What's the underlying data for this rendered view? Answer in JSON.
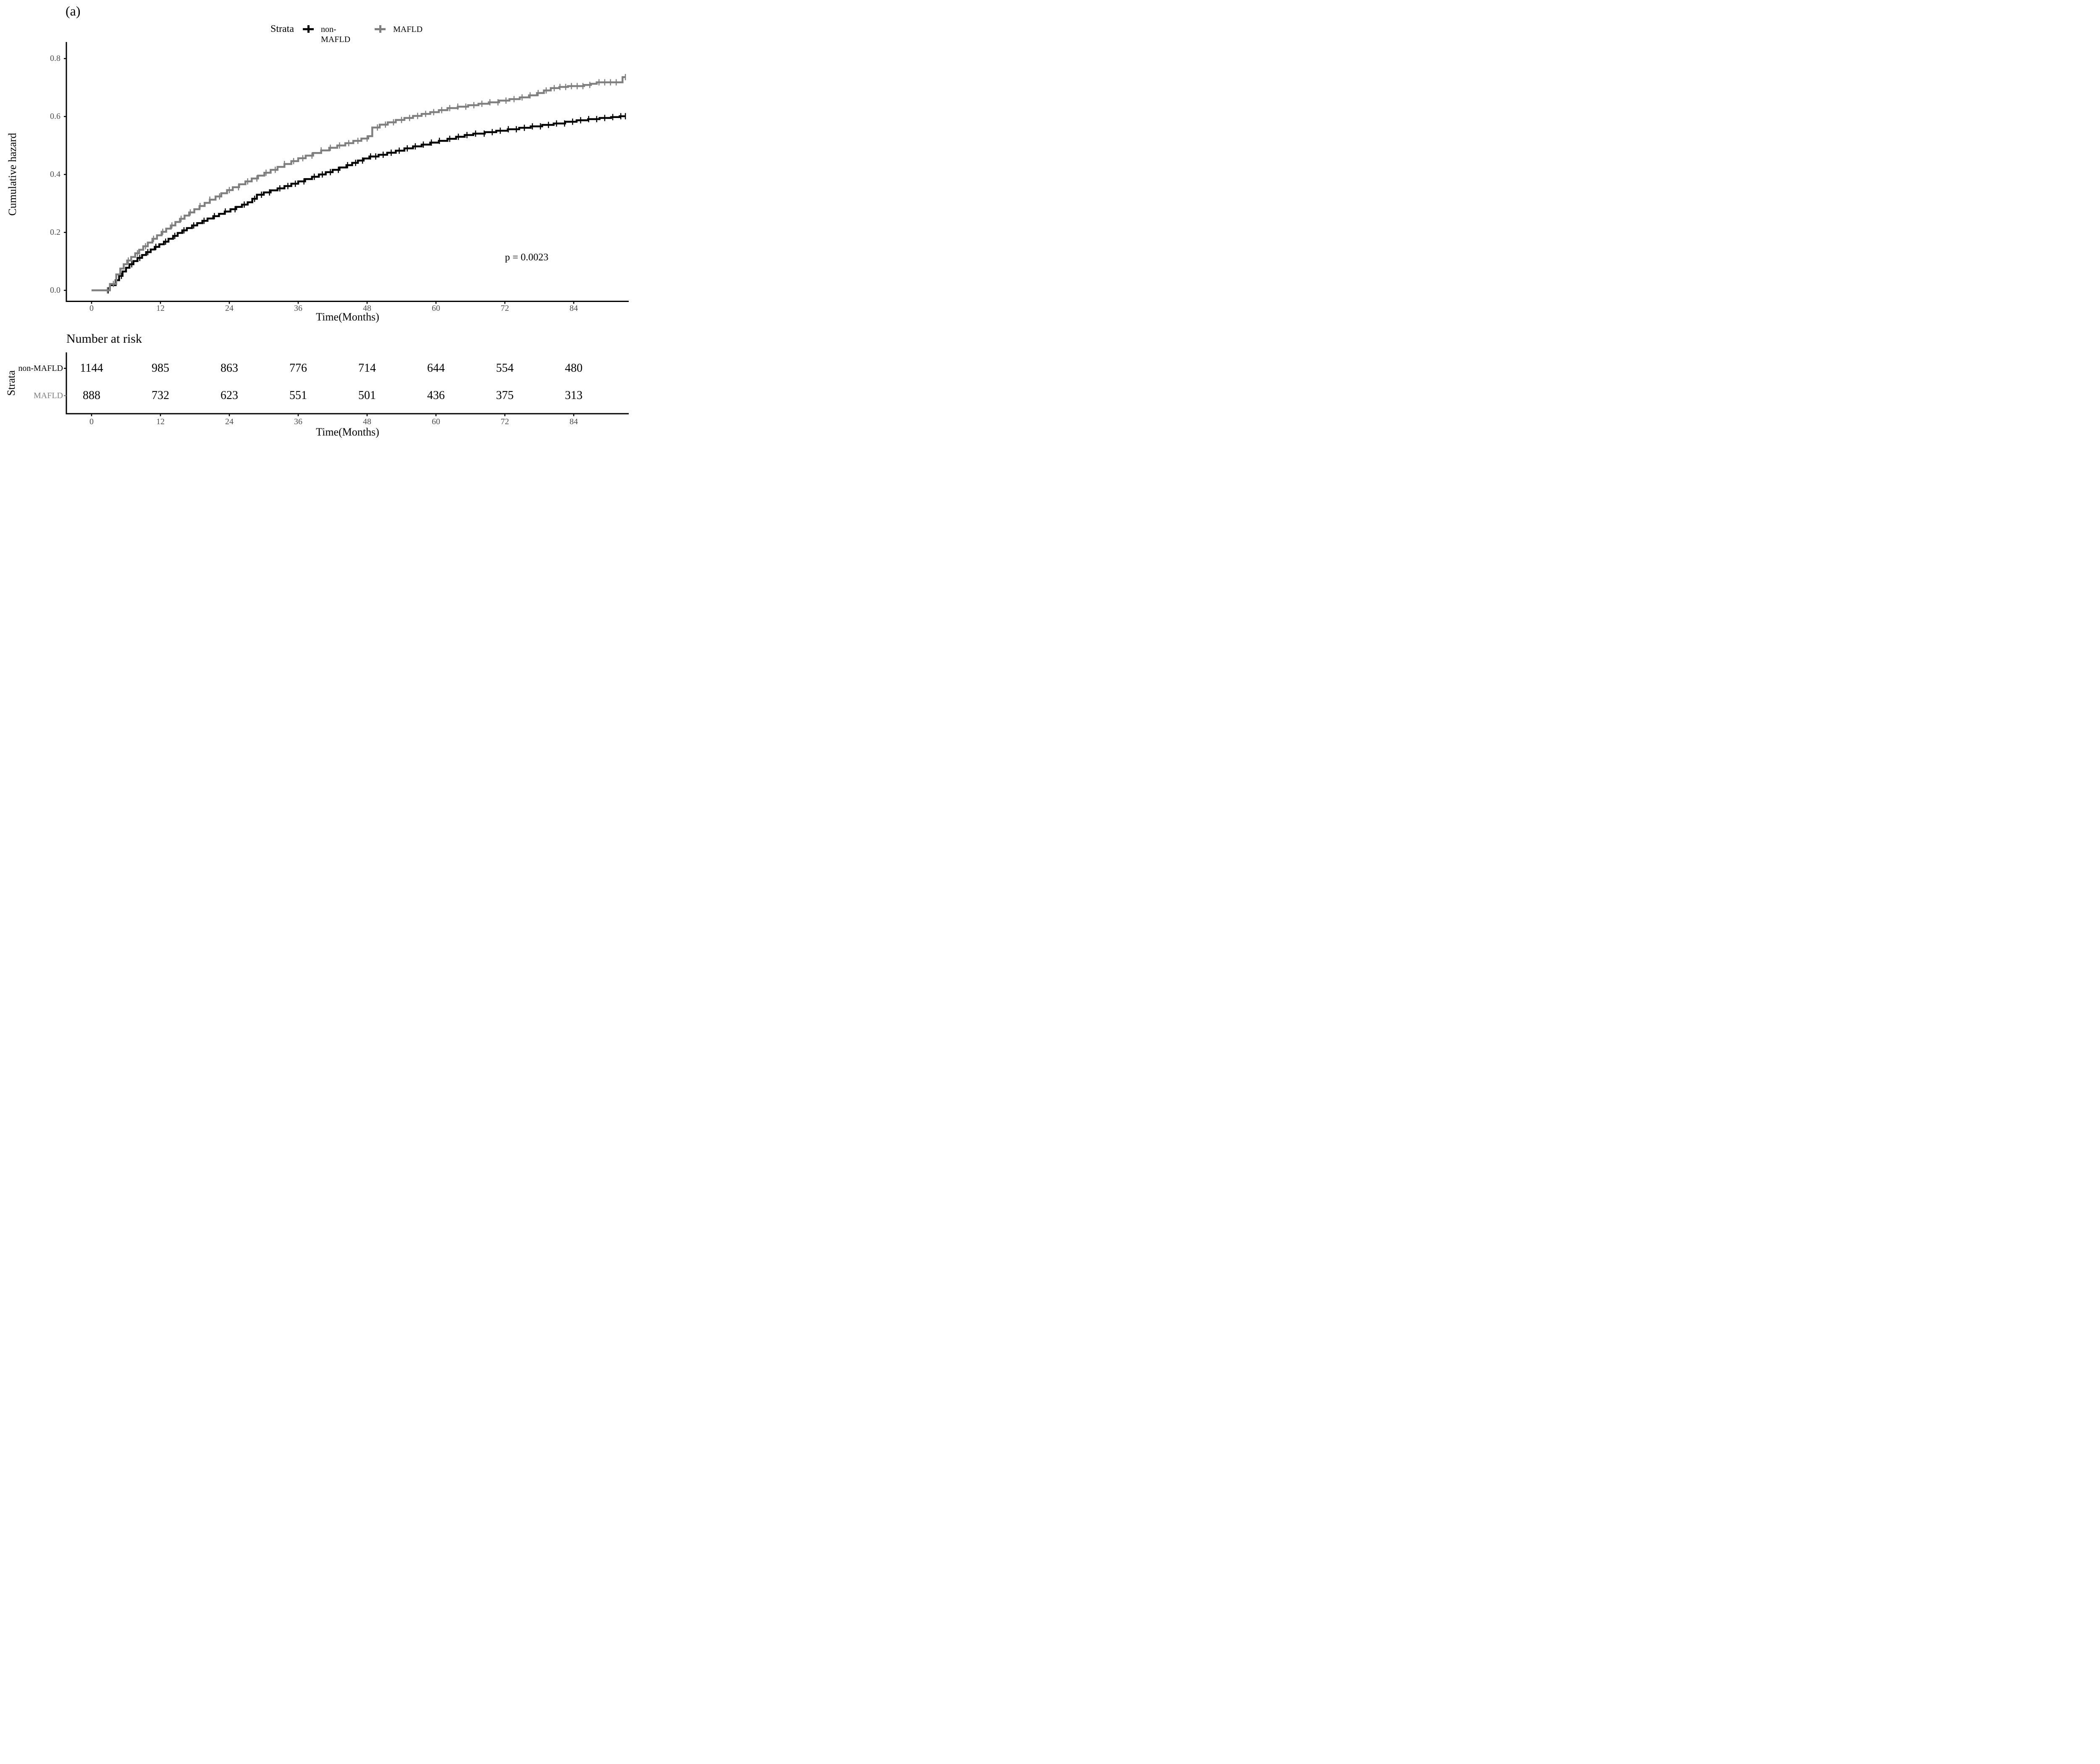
{
  "panel_label": "(a)",
  "pvalue": "p = 0.0023",
  "legend": {
    "title": "Strata",
    "items": [
      {
        "label": "non-MAFLD",
        "color": "#000000"
      },
      {
        "label": "MAFLD",
        "color": "#7f7f7f"
      }
    ]
  },
  "colors": {
    "non_mafld": "#000000",
    "mafld": "#7f7f7f",
    "tick_label": "#4d4d4d",
    "axis": "#000000",
    "background": "#ffffff"
  },
  "chart_data": {
    "type": "line",
    "subtype": "kaplan-meier-cumulative-hazard-step-curves",
    "title": "",
    "xlabel": "Time(Months)",
    "ylabel": "Cumulative hazard",
    "xlim": [
      0,
      93.6
    ],
    "ylim": [
      0,
      0.8
    ],
    "xticks": [
      "0",
      "12",
      "24",
      "36",
      "48",
      "60",
      "72",
      "84"
    ],
    "xtick_values": [
      0,
      12,
      24,
      36,
      48,
      60,
      72,
      84
    ],
    "yticks": [
      "0.0",
      "0.2",
      "0.4",
      "0.6",
      "0.8"
    ],
    "ytick_values": [
      0.0,
      0.2,
      0.4,
      0.6,
      0.8
    ],
    "grid": false,
    "legend_position": "top-center",
    "annotation": "p = 0.0023",
    "series": [
      {
        "name": "non-MAFLD",
        "color": "#000000",
        "start": [
          0,
          0
        ],
        "end_time": 93,
        "steps": [
          [
            3.2,
            0.018
          ],
          [
            4.2,
            0.035
          ],
          [
            4.8,
            0.05
          ],
          [
            5.4,
            0.065
          ],
          [
            6,
            0.078
          ],
          [
            6.6,
            0.09
          ],
          [
            7.3,
            0.101
          ],
          [
            8,
            0.112
          ],
          [
            8.8,
            0.122
          ],
          [
            9.5,
            0.132
          ],
          [
            10.3,
            0.141
          ],
          [
            11,
            0.15
          ],
          [
            11.8,
            0.159
          ],
          [
            12.6,
            0.168
          ],
          [
            13.4,
            0.178
          ],
          [
            14.2,
            0.188
          ],
          [
            15,
            0.198
          ],
          [
            15.8,
            0.207
          ],
          [
            16.6,
            0.215
          ],
          [
            17.5,
            0.224
          ],
          [
            18.4,
            0.232
          ],
          [
            19.3,
            0.24
          ],
          [
            20.2,
            0.248
          ],
          [
            21.2,
            0.256
          ],
          [
            22.2,
            0.264
          ],
          [
            23.2,
            0.272
          ],
          [
            24.2,
            0.28
          ],
          [
            25.2,
            0.288
          ],
          [
            26.2,
            0.296
          ],
          [
            27.2,
            0.304
          ],
          [
            28,
            0.316
          ],
          [
            28.8,
            0.33
          ],
          [
            30,
            0.338
          ],
          [
            31.2,
            0.345
          ],
          [
            32.4,
            0.352
          ],
          [
            33.6,
            0.36
          ],
          [
            34.8,
            0.368
          ],
          [
            36,
            0.376
          ],
          [
            37.2,
            0.384
          ],
          [
            38.4,
            0.392
          ],
          [
            39.6,
            0.4
          ],
          [
            40.8,
            0.408
          ],
          [
            42,
            0.416
          ],
          [
            43.2,
            0.424
          ],
          [
            44.4,
            0.432
          ],
          [
            45.4,
            0.44
          ],
          [
            46.4,
            0.448
          ],
          [
            47.4,
            0.455
          ],
          [
            48.4,
            0.462
          ],
          [
            50,
            0.468
          ],
          [
            51.5,
            0.475
          ],
          [
            53,
            0.482
          ],
          [
            54.5,
            0.49
          ],
          [
            56,
            0.497
          ],
          [
            57.5,
            0.503
          ],
          [
            59,
            0.51
          ],
          [
            60.5,
            0.516
          ],
          [
            62,
            0.523
          ],
          [
            63.5,
            0.53
          ],
          [
            65,
            0.536
          ],
          [
            66.5,
            0.541
          ],
          [
            68.5,
            0.546
          ],
          [
            70.5,
            0.551
          ],
          [
            72.5,
            0.556
          ],
          [
            74.5,
            0.561
          ],
          [
            76.5,
            0.566
          ],
          [
            78.5,
            0.571
          ],
          [
            80.5,
            0.576
          ],
          [
            82.5,
            0.582
          ],
          [
            84.5,
            0.587
          ],
          [
            86.5,
            0.591
          ],
          [
            88.5,
            0.595
          ],
          [
            90.5,
            0.598
          ],
          [
            92,
            0.601
          ]
        ],
        "censor_times": [
          2.9,
          5.2,
          7,
          8.4,
          9.8,
          11.2,
          12.9,
          14.5,
          16.1,
          17.8,
          19.6,
          21.4,
          23.3,
          25,
          26.6,
          28.4,
          29.6,
          31,
          32.8,
          34.2,
          35.5,
          37,
          38.8,
          40.2,
          41.6,
          43,
          44.6,
          46,
          47.2,
          48.6,
          49.5,
          50.8,
          52.2,
          53.6,
          55,
          56.4,
          57.8,
          59.2,
          60.6,
          62.4,
          63.9,
          65.4,
          66.9,
          68.4,
          69.8,
          71.2,
          72.6,
          74,
          75.4,
          76.8,
          78.2,
          79.6,
          81,
          82.4,
          83.8,
          85.2,
          86.6,
          88,
          89.4,
          90.8,
          92.2,
          93
        ]
      },
      {
        "name": "MAFLD",
        "color": "#7f7f7f",
        "start": [
          0,
          0
        ],
        "end_time": 93,
        "steps": [
          [
            3.2,
            0.022
          ],
          [
            4.3,
            0.055
          ],
          [
            5,
            0.075
          ],
          [
            5.6,
            0.09
          ],
          [
            6.2,
            0.103
          ],
          [
            6.9,
            0.115
          ],
          [
            7.6,
            0.128
          ],
          [
            8.3,
            0.14
          ],
          [
            9,
            0.152
          ],
          [
            9.8,
            0.165
          ],
          [
            10.6,
            0.178
          ],
          [
            11.4,
            0.19
          ],
          [
            12.2,
            0.202
          ],
          [
            13,
            0.213
          ],
          [
            13.8,
            0.224
          ],
          [
            14.6,
            0.236
          ],
          [
            15.4,
            0.247
          ],
          [
            16.2,
            0.258
          ],
          [
            17,
            0.269
          ],
          [
            17.9,
            0.28
          ],
          [
            18.8,
            0.291
          ],
          [
            19.7,
            0.302
          ],
          [
            20.6,
            0.313
          ],
          [
            21.6,
            0.324
          ],
          [
            22.6,
            0.335
          ],
          [
            23.6,
            0.346
          ],
          [
            24.6,
            0.356
          ],
          [
            25.7,
            0.366
          ],
          [
            26.8,
            0.376
          ],
          [
            27.9,
            0.386
          ],
          [
            29,
            0.396
          ],
          [
            30.1,
            0.406
          ],
          [
            31.2,
            0.416
          ],
          [
            32.4,
            0.426
          ],
          [
            33.6,
            0.436
          ],
          [
            34.8,
            0.446
          ],
          [
            36,
            0.456
          ],
          [
            37.3,
            0.465
          ],
          [
            38.6,
            0.474
          ],
          [
            40,
            0.483
          ],
          [
            41.4,
            0.492
          ],
          [
            42.8,
            0.5
          ],
          [
            44.2,
            0.508
          ],
          [
            45.6,
            0.516
          ],
          [
            47,
            0.524
          ],
          [
            48.2,
            0.532
          ],
          [
            48.9,
            0.562
          ],
          [
            50.2,
            0.572
          ],
          [
            51.6,
            0.58
          ],
          [
            53,
            0.588
          ],
          [
            54.5,
            0.595
          ],
          [
            56,
            0.602
          ],
          [
            57.5,
            0.609
          ],
          [
            59,
            0.615
          ],
          [
            60.5,
            0.622
          ],
          [
            62,
            0.629
          ],
          [
            63.8,
            0.634
          ],
          [
            65.6,
            0.639
          ],
          [
            67.4,
            0.644
          ],
          [
            69.2,
            0.649
          ],
          [
            71,
            0.655
          ],
          [
            72.8,
            0.66
          ],
          [
            74.6,
            0.666
          ],
          [
            76.2,
            0.673
          ],
          [
            77.6,
            0.681
          ],
          [
            78.8,
            0.69
          ],
          [
            80,
            0.698
          ],
          [
            81.5,
            0.702
          ],
          [
            83,
            0.705
          ],
          [
            85.8,
            0.709
          ],
          [
            87,
            0.713
          ],
          [
            88,
            0.718
          ],
          [
            92.5,
            0.736
          ]
        ],
        "censor_times": [
          2.75,
          3.8,
          6.4,
          8,
          9.4,
          10.8,
          12.4,
          14,
          15.6,
          17.2,
          18.9,
          20.6,
          22.3,
          24,
          25.6,
          27.2,
          28.8,
          30.4,
          32,
          33.6,
          35.2,
          36.8,
          38.4,
          40,
          41.6,
          43.2,
          44.8,
          46.4,
          48,
          49.8,
          51.2,
          52.6,
          54,
          55.4,
          56.8,
          58.2,
          59.6,
          61,
          62.4,
          63.8,
          65.2,
          66.6,
          68,
          69.4,
          70.8,
          72.2,
          73.6,
          75,
          76.4,
          77.8,
          79.2,
          80.6,
          81.6,
          82.6,
          83.6,
          84.6,
          85.6,
          86.8,
          88.4,
          89.4,
          90.4,
          91.4,
          93
        ]
      }
    ]
  },
  "risk_table": {
    "title": "Number at risk",
    "axis_label": "Strata",
    "xlabel": "Time(Months)",
    "xticks": [
      "0",
      "12",
      "24",
      "36",
      "48",
      "60",
      "72",
      "84"
    ],
    "xtick_values": [
      0,
      12,
      24,
      36,
      48,
      60,
      72,
      84
    ],
    "rows": [
      {
        "label": "non-MAFLD",
        "color": "#000000",
        "values": [
          "1144",
          "985",
          "863",
          "776",
          "714",
          "644",
          "554",
          "480"
        ]
      },
      {
        "label": "MAFLD",
        "color": "#7f7f7f",
        "values": [
          "888",
          "732",
          "623",
          "551",
          "501",
          "436",
          "375",
          "313"
        ]
      }
    ]
  }
}
